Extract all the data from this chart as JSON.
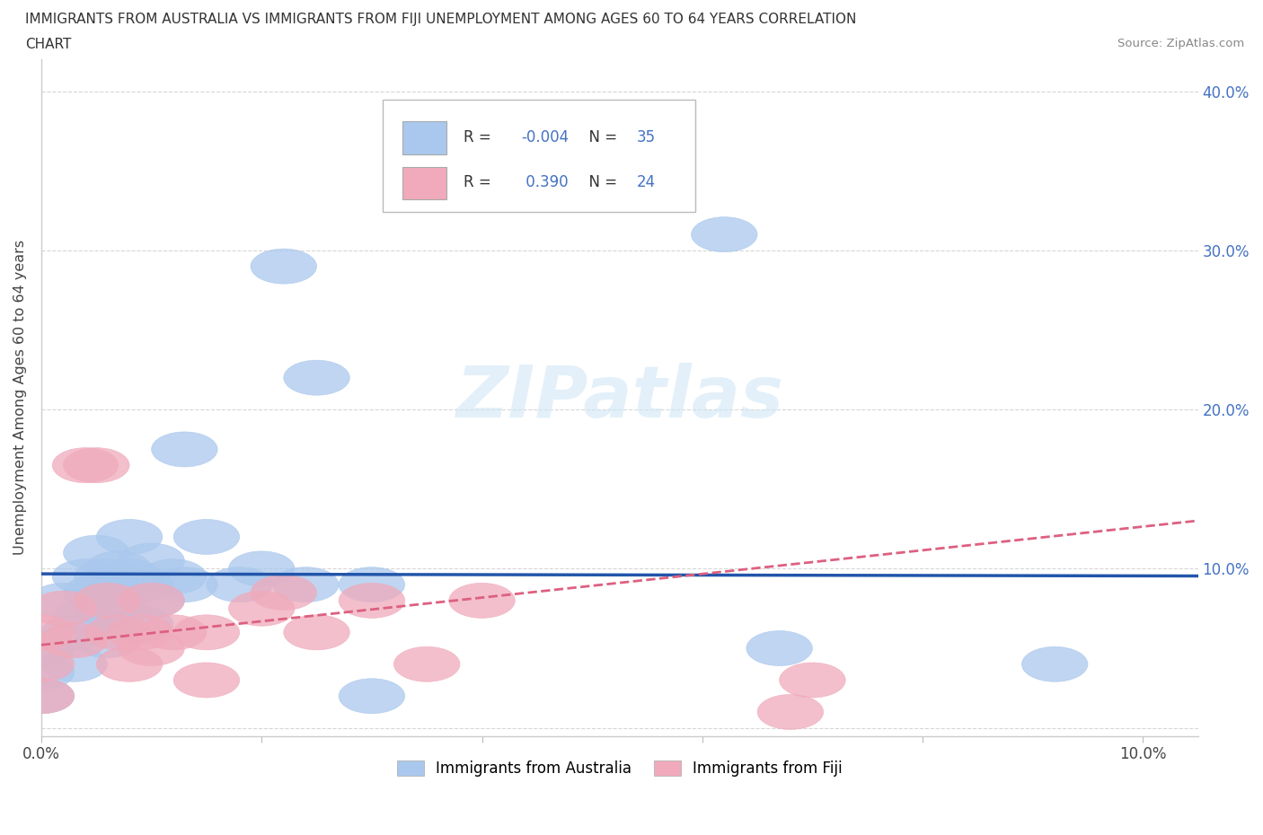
{
  "title_line1": "IMMIGRANTS FROM AUSTRALIA VS IMMIGRANTS FROM FIJI UNEMPLOYMENT AMONG AGES 60 TO 64 YEARS CORRELATION",
  "title_line2": "CHART",
  "source": "Source: ZipAtlas.com",
  "ylabel": "Unemployment Among Ages 60 to 64 years",
  "xlim": [
    0.0,
    0.105
  ],
  "ylim": [
    -0.005,
    0.42
  ],
  "x_ticks": [
    0.0,
    0.02,
    0.04,
    0.06,
    0.08,
    0.1
  ],
  "x_tick_labels": [
    "0.0%",
    "",
    "",
    "",
    "",
    "10.0%"
  ],
  "y_ticks": [
    0.0,
    0.1,
    0.2,
    0.3,
    0.4
  ],
  "y_tick_labels_right": [
    "",
    "10.0%",
    "20.0%",
    "30.0%",
    "40.0%"
  ],
  "australia_R": -0.004,
  "australia_N": 35,
  "fiji_R": 0.39,
  "fiji_N": 24,
  "australia_color": "#aac8ed",
  "fiji_color": "#f0aabb",
  "australia_line_color": "#2255aa",
  "fiji_line_color": "#dd6080",
  "watermark_text": "ZIPatlas",
  "australia_x": [
    0.0,
    0.0,
    0.0,
    0.002,
    0.003,
    0.003,
    0.004,
    0.004,
    0.005,
    0.005,
    0.006,
    0.006,
    0.006,
    0.007,
    0.007,
    0.008,
    0.008,
    0.009,
    0.009,
    0.01,
    0.01,
    0.012,
    0.013,
    0.013,
    0.015,
    0.018,
    0.02,
    0.022,
    0.024,
    0.025,
    0.03,
    0.03,
    0.062,
    0.067,
    0.092
  ],
  "australia_y": [
    0.05,
    0.035,
    0.02,
    0.08,
    0.06,
    0.04,
    0.095,
    0.07,
    0.11,
    0.085,
    0.095,
    0.075,
    0.055,
    0.1,
    0.075,
    0.12,
    0.095,
    0.09,
    0.065,
    0.105,
    0.08,
    0.095,
    0.175,
    0.09,
    0.12,
    0.09,
    0.1,
    0.29,
    0.09,
    0.22,
    0.09,
    0.02,
    0.31,
    0.05,
    0.04
  ],
  "fiji_x": [
    0.0,
    0.0,
    0.0,
    0.002,
    0.003,
    0.004,
    0.005,
    0.006,
    0.007,
    0.008,
    0.009,
    0.01,
    0.01,
    0.012,
    0.015,
    0.015,
    0.02,
    0.022,
    0.025,
    0.03,
    0.035,
    0.04,
    0.068,
    0.07
  ],
  "fiji_y": [
    0.06,
    0.04,
    0.02,
    0.075,
    0.055,
    0.165,
    0.165,
    0.08,
    0.06,
    0.04,
    0.06,
    0.08,
    0.05,
    0.06,
    0.06,
    0.03,
    0.075,
    0.085,
    0.06,
    0.08,
    0.04,
    0.08,
    0.01,
    0.03
  ]
}
